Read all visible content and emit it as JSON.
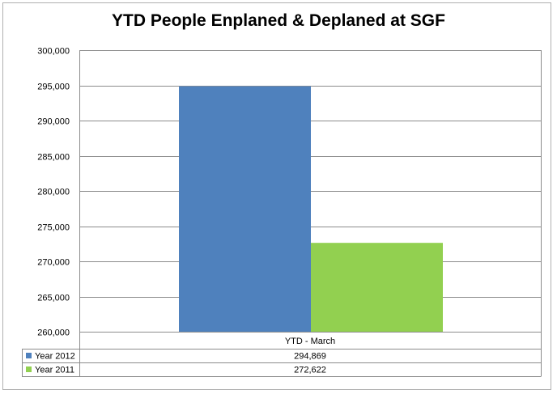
{
  "chart_data": {
    "type": "bar",
    "title": "YTD People Enplaned & Deplaned at SGF",
    "categories": [
      "YTD - March"
    ],
    "series": [
      {
        "name": "Year 2012",
        "values": [
          294869
        ],
        "value_labels": [
          "294,869"
        ],
        "color": "#4f81bd"
      },
      {
        "name": "Year 2011",
        "values": [
          272622
        ],
        "value_labels": [
          "272,622"
        ],
        "color": "#92d050"
      }
    ],
    "ylim": [
      260000,
      300000
    ],
    "yticks": [
      "260,000",
      "265,000",
      "270,000",
      "275,000",
      "280,000",
      "285,000",
      "290,000",
      "295,000",
      "300,000"
    ],
    "grid": true,
    "legend": "data-table"
  }
}
